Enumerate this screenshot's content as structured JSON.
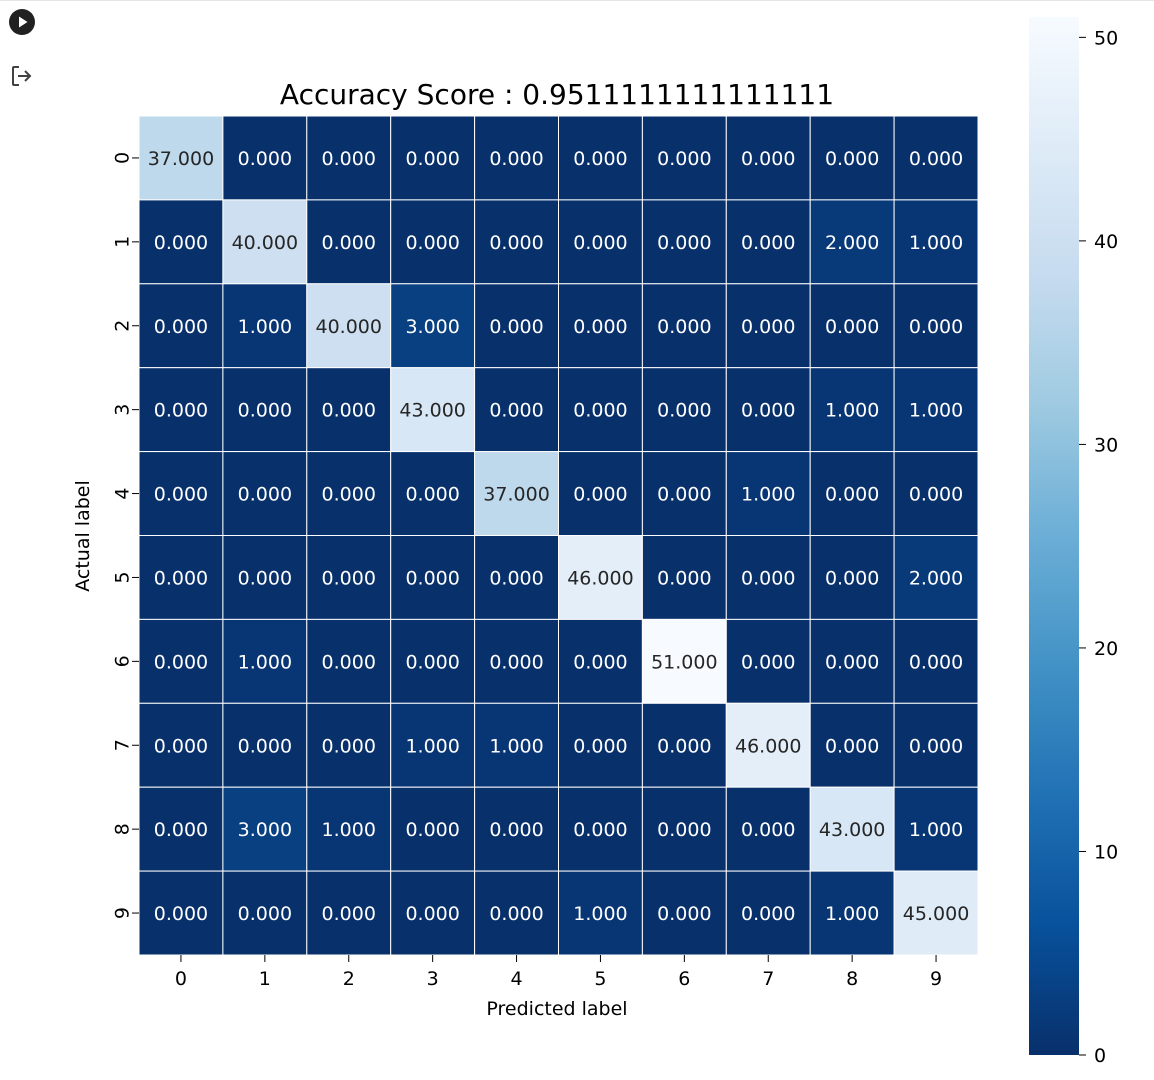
{
  "cell_toolbar": {
    "run_icon": "play-circle-icon",
    "output_icon": "output-exit-icon"
  },
  "chart_data": {
    "type": "heatmap",
    "title": "Accuracy Score : 0.9511111111111111",
    "xlabel": "Predicted label",
    "ylabel": "Actual label",
    "x_categories": [
      "0",
      "1",
      "2",
      "3",
      "4",
      "5",
      "6",
      "7",
      "8",
      "9"
    ],
    "y_categories": [
      "0",
      "1",
      "2",
      "3",
      "4",
      "5",
      "6",
      "7",
      "8",
      "9"
    ],
    "matrix": [
      [
        37,
        0,
        0,
        0,
        0,
        0,
        0,
        0,
        0,
        0
      ],
      [
        0,
        40,
        0,
        0,
        0,
        0,
        0,
        0,
        2,
        1
      ],
      [
        0,
        1,
        40,
        3,
        0,
        0,
        0,
        0,
        0,
        0
      ],
      [
        0,
        0,
        0,
        43,
        0,
        0,
        0,
        0,
        1,
        1
      ],
      [
        0,
        0,
        0,
        0,
        37,
        0,
        0,
        1,
        0,
        0
      ],
      [
        0,
        0,
        0,
        0,
        0,
        46,
        0,
        0,
        0,
        2
      ],
      [
        0,
        1,
        0,
        0,
        0,
        0,
        51,
        0,
        0,
        0
      ],
      [
        0,
        0,
        0,
        1,
        1,
        0,
        0,
        46,
        0,
        0
      ],
      [
        0,
        3,
        1,
        0,
        0,
        0,
        0,
        0,
        43,
        1
      ],
      [
        0,
        0,
        0,
        0,
        0,
        1,
        0,
        0,
        1,
        45
      ]
    ],
    "value_format_decimals": 3,
    "colormap": "Blues_r",
    "colormap_stops": [
      "#08306b",
      "#08519c",
      "#2171b5",
      "#4292c6",
      "#6baed6",
      "#9ecae1",
      "#c6dbef",
      "#deebf7",
      "#f7fbff"
    ],
    "vmin": 0,
    "vmax": 51,
    "colorbar_ticks": [
      0,
      10,
      20,
      30,
      40,
      50
    ],
    "linecolor": "#ffffff",
    "annot_dark_text_color": "#262626",
    "annot_light_text_color": "#ffffff"
  }
}
